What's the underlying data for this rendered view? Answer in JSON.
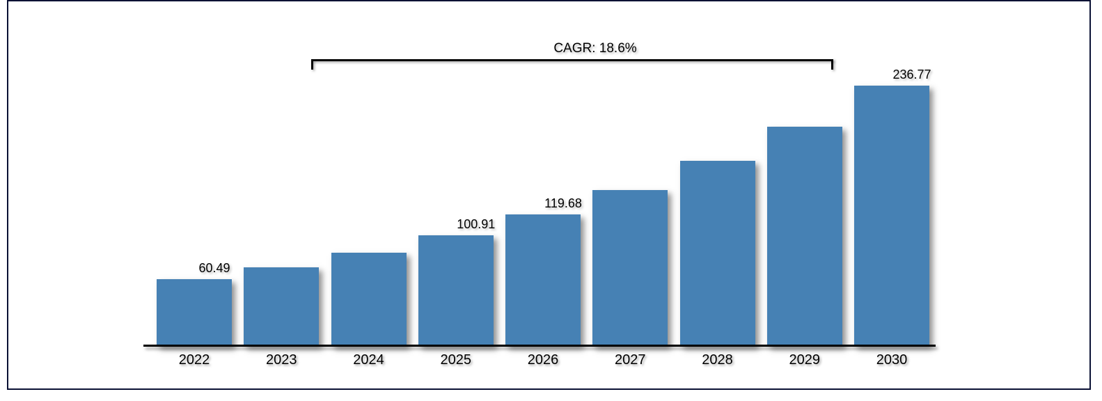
{
  "chart_data": {
    "type": "bar",
    "title": "",
    "xlabel": "",
    "ylabel": "",
    "categories": [
      "2022",
      "2023",
      "2024",
      "2025",
      "2026",
      "2027",
      "2028",
      "2029",
      "2030"
    ],
    "values": [
      60.49,
      71.74,
      85.08,
      100.91,
      119.68,
      141.94,
      168.34,
      199.65,
      236.77
    ],
    "bar_labels": [
      "60.49",
      null,
      null,
      "100.91",
      "119.68",
      null,
      null,
      null,
      "236.77"
    ],
    "annotation": {
      "text": "CAGR: 18.6%",
      "span_start_category": "2023",
      "span_end_category": "2029"
    },
    "bar_color": "#4681B4",
    "axis_color": "#000000",
    "frame_border_color": "#0a1134",
    "ylim": [
      0,
      260
    ],
    "grid": false,
    "legend": false
  }
}
